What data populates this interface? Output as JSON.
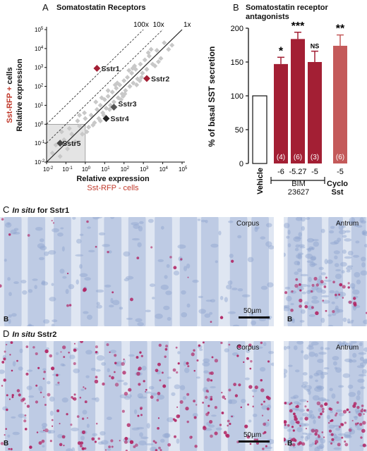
{
  "panelA": {
    "letter": "A",
    "title": "Somatostatin Receptors",
    "ylabel_part1": "Sst-RFP +",
    "ylabel_part2": " cells",
    "ylabel_line2": "Relative expression",
    "xlabel_line1": "Relative expression",
    "xlabel_line2": "Sst-RFP - cells",
    "diag_labels": [
      "100x",
      "10x",
      "1x"
    ]
  },
  "panelB": {
    "letter": "B",
    "title_line1": "Somatostatin receptor",
    "title_line2": "antagonists",
    "ylabel": "% of basal SST secretion",
    "group_bim": "BIM",
    "group_bim2": "23627",
    "group_cyclo": "Cyclo",
    "group_cyclo2": "Sst"
  },
  "panelC": {
    "letter": "C",
    "title_italic": "In situ",
    "title_rest": " for Sstr1",
    "corpus": "Corpus",
    "antrum": "Antrum",
    "scale": "50µm",
    "b_left": "B",
    "b_right": "B"
  },
  "panelD": {
    "letter": "D",
    "title_italic": "In situ",
    "title_rest": " Sstr2",
    "corpus": "Corpus",
    "antrum": "Antrum",
    "scale": "50µm",
    "b_left": "B",
    "b_right": "B"
  },
  "colors": {
    "dark_red": "#a31f34",
    "light_red": "#c45a5a",
    "label_red": "#c0392b",
    "tissue_blue": "#aebfdd"
  },
  "chart_data": [
    {
      "type": "scatter",
      "title": "Somatostatin Receptors",
      "xlabel": "Relative expression Sst-RFP - cells",
      "ylabel": "Sst-RFP + cells Relative expression",
      "x_scale": "log",
      "y_scale": "log",
      "xlim": [
        0.01,
        100000
      ],
      "ylim": [
        0.01,
        100000
      ],
      "x_ticks": [
        "10-2",
        "10-1",
        "100",
        "101",
        "102",
        "103",
        "104",
        "105"
      ],
      "y_ticks": [
        "10-2",
        "10-1",
        "100",
        "101",
        "102",
        "103",
        "104",
        "105"
      ],
      "points": [
        {
          "name": "Sstr1",
          "x": 4,
          "y": 900,
          "color": "#a31f34"
        },
        {
          "name": "Sstr2",
          "x": 1500,
          "y": 260,
          "color": "#a31f34"
        },
        {
          "name": "Sstr3",
          "x": 30,
          "y": 8,
          "color": "#555555"
        },
        {
          "name": "Sstr4",
          "x": 12,
          "y": 2,
          "color": "#222222"
        },
        {
          "name": "Sstr5",
          "x": 0.05,
          "y": 0.1,
          "color": "#444444"
        }
      ],
      "reference_lines": [
        "100x",
        "10x",
        "1x"
      ],
      "background": [
        [
          0.02,
          0.03
        ],
        [
          0.05,
          0.02
        ],
        [
          0.08,
          0.15
        ],
        [
          0.12,
          0.05
        ],
        [
          0.2,
          0.3
        ],
        [
          0.3,
          0.12
        ],
        [
          0.5,
          0.8
        ],
        [
          0.7,
          0.3
        ],
        [
          1,
          2
        ],
        [
          1.5,
          0.7
        ],
        [
          2,
          3
        ],
        [
          3,
          1.2
        ],
        [
          4,
          6
        ],
        [
          5,
          2
        ],
        [
          6,
          10
        ],
        [
          8,
          4
        ],
        [
          10,
          20
        ],
        [
          12,
          7
        ],
        [
          15,
          30
        ],
        [
          20,
          10
        ],
        [
          25,
          50
        ],
        [
          30,
          15
        ],
        [
          40,
          80
        ],
        [
          50,
          25
        ],
        [
          60,
          120
        ],
        [
          80,
          40
        ],
        [
          100,
          200
        ],
        [
          120,
          60
        ],
        [
          150,
          300
        ],
        [
          200,
          100
        ],
        [
          250,
          500
        ],
        [
          300,
          150
        ],
        [
          400,
          800
        ],
        [
          500,
          250
        ],
        [
          700,
          1500
        ],
        [
          900,
          500
        ],
        [
          1200,
          2500
        ],
        [
          1500,
          800
        ],
        [
          2000,
          4000
        ],
        [
          3000,
          1500
        ],
        [
          5000,
          8000
        ],
        [
          8000,
          3000
        ],
        [
          12000,
          20000
        ],
        [
          20000,
          9000
        ],
        [
          0.15,
          0.6
        ],
        [
          0.4,
          1.5
        ],
        [
          0.9,
          4
        ],
        [
          2.5,
          0.9
        ],
        [
          7,
          25
        ],
        [
          18,
          6
        ],
        [
          45,
          150
        ],
        [
          110,
          40
        ],
        [
          280,
          900
        ],
        [
          650,
          200
        ],
        [
          1800,
          6000
        ],
        [
          4000,
          1200
        ],
        [
          30000,
          15000
        ],
        [
          0.03,
          0.08
        ],
        [
          0.06,
          0.4
        ],
        [
          0.25,
          0.09
        ],
        [
          3.5,
          15
        ],
        [
          9,
          3
        ],
        [
          35,
          120
        ],
        [
          90,
          30
        ],
        [
          350,
          1200
        ],
        [
          800,
          300
        ],
        [
          2500,
          9000
        ],
        [
          6000,
          2000
        ],
        [
          0.5,
          3
        ],
        [
          1.2,
          0.4
        ],
        [
          6,
          1.5
        ],
        [
          15,
          60
        ],
        [
          70,
          20
        ],
        [
          180,
          700
        ],
        [
          450,
          120
        ]
      ]
    },
    {
      "type": "bar",
      "title": "Somatostatin receptor antagonists",
      "ylabel": "% of basal SST secretion",
      "ylim": [
        0,
        200
      ],
      "y_ticks": [
        0,
        50,
        100,
        150,
        200
      ],
      "categories": [
        "Vehicle",
        "-6",
        "-5.27",
        "-5",
        "-5"
      ],
      "groups": [
        {
          "name": "BIM 23627",
          "members": [
            "-6",
            "-5.27",
            "-5"
          ]
        },
        {
          "name": "Cyclo Sst",
          "members": [
            "-5"
          ]
        }
      ],
      "values": [
        100,
        147,
        184,
        150,
        174
      ],
      "errors": [
        0,
        10,
        10,
        16,
        16
      ],
      "n_labels": [
        "",
        "(4)",
        "(6)",
        "(3)",
        "(6)"
      ],
      "significance": [
        "",
        "*",
        "***",
        "NS",
        "**"
      ],
      "colors": [
        "#ffffff",
        "#a31f34",
        "#a31f34",
        "#a31f34",
        "#c45a5a"
      ]
    }
  ]
}
